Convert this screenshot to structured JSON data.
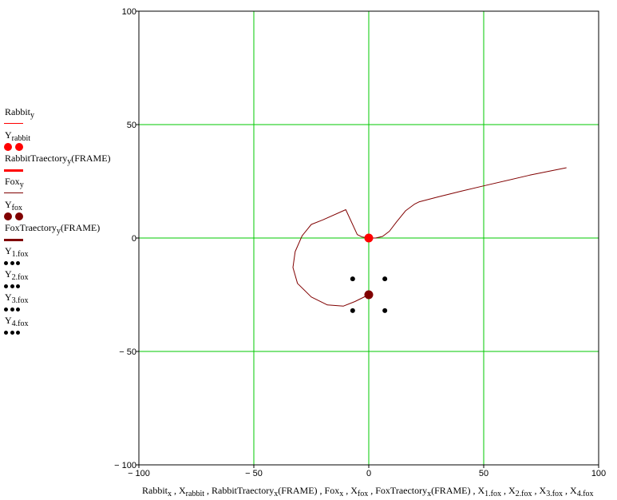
{
  "chart_data": {
    "type": "line",
    "xlim": [
      -100,
      100
    ],
    "ylim": [
      -100,
      100
    ],
    "x_ticks": [
      -100,
      -50,
      0,
      50,
      100
    ],
    "y_ticks": [
      -100,
      -50,
      0,
      50,
      100
    ],
    "x_tick_labels": [
      "− 100",
      "− 50",
      "0",
      "50",
      "100"
    ],
    "y_tick_labels": [
      "100",
      "50",
      "0",
      "− 50",
      "− 100"
    ],
    "grid": true,
    "grid_color": "#00c800",
    "legend_position": "left",
    "xlabel_parts": [
      {
        "t": "Rabbit"
      },
      {
        "s": "x"
      },
      {
        "t": " , X"
      },
      {
        "s": "rabbit"
      },
      {
        "t": " , RabbitTraectory"
      },
      {
        "s": "x"
      },
      {
        "t": "(FRAME) , Fox"
      },
      {
        "s": "x"
      },
      {
        "t": " , X"
      },
      {
        "s": "fox"
      },
      {
        "t": " , FoxTraectory"
      },
      {
        "s": "x"
      },
      {
        "t": "(FRAME) , X"
      },
      {
        "s": "1.fox"
      },
      {
        "t": " , X"
      },
      {
        "s": "2.fox"
      },
      {
        "t": " , X"
      },
      {
        "s": "3.fox"
      },
      {
        "t": " , X"
      },
      {
        "s": "4.fox"
      }
    ],
    "legend": [
      {
        "name": "Rabbit",
        "sub": "y",
        "style": "thin-line",
        "color": "#ff0000"
      },
      {
        "name": "Y",
        "sub": "rabbit",
        "style": "big-dots",
        "color": "#ff0000"
      },
      {
        "name": "RabbitTraectory",
        "sub": "y",
        "suffix": "(FRAME)",
        "style": "thick-line",
        "color": "#ff0000"
      },
      {
        "name": "Fox",
        "sub": "y",
        "style": "thin-line",
        "color": "#800000"
      },
      {
        "name": "Y",
        "sub": "fox",
        "style": "big-dots",
        "color": "#800000"
      },
      {
        "name": "FoxTraectory",
        "sub": "y",
        "suffix": "(FRAME)",
        "style": "thick-line",
        "color": "#800000"
      },
      {
        "name": "Y",
        "sub": "1.fox",
        "style": "small-dots",
        "color": "#000000"
      },
      {
        "name": "Y",
        "sub": "2.fox",
        "style": "small-dots",
        "color": "#000000"
      },
      {
        "name": "Y",
        "sub": "3.fox",
        "style": "small-dots",
        "color": "#000000"
      },
      {
        "name": "Y",
        "sub": "4.fox",
        "style": "small-dots",
        "color": "#000000"
      }
    ],
    "series": [
      {
        "style": "line",
        "color": "#800000",
        "points": [
          [
            86,
            31
          ],
          [
            70,
            27.7
          ],
          [
            50,
            23
          ],
          [
            40,
            20.6
          ],
          [
            30,
            18.1
          ],
          [
            22,
            16
          ],
          [
            20,
            15
          ],
          [
            16,
            12
          ],
          [
            12,
            7
          ],
          [
            9,
            3
          ],
          [
            6,
            0.7
          ],
          [
            3,
            0
          ],
          [
            0,
            0
          ],
          [
            -3,
            0.5
          ],
          [
            -5,
            1.5
          ],
          [
            -10,
            12.5
          ],
          [
            -20,
            8
          ],
          [
            -25,
            6
          ],
          [
            -29,
            1
          ],
          [
            -32,
            -6
          ],
          [
            -33,
            -13
          ],
          [
            -31,
            -20
          ],
          [
            -25,
            -26
          ],
          [
            -18,
            -29.5
          ],
          [
            -11,
            -30
          ],
          [
            -6,
            -28
          ],
          [
            0,
            -25
          ]
        ]
      },
      {
        "style": "line",
        "color": "#ff0000",
        "points": [
          [
            0,
            0
          ],
          [
            0,
            0
          ]
        ]
      }
    ],
    "markers": [
      {
        "x": 0,
        "y": 0,
        "color": "#ff0000",
        "size": "large"
      },
      {
        "x": 0,
        "y": -25,
        "color": "#800000",
        "size": "large"
      },
      {
        "x": -7,
        "y": -18,
        "color": "#000000",
        "size": "small"
      },
      {
        "x": 7,
        "y": -18,
        "color": "#000000",
        "size": "small"
      },
      {
        "x": -7,
        "y": -32,
        "color": "#000000",
        "size": "small"
      },
      {
        "x": 7,
        "y": -32,
        "color": "#000000",
        "size": "small"
      }
    ]
  }
}
